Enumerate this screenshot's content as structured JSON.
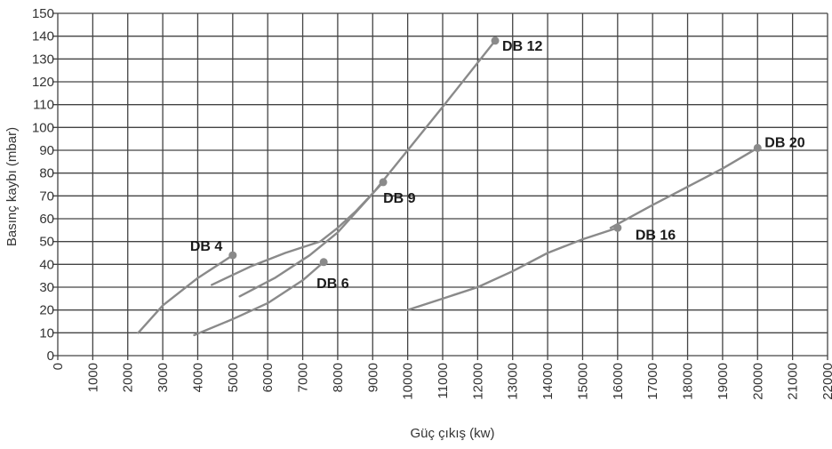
{
  "chart_data": {
    "type": "line",
    "xlabel": "Güç çıkış (kw)",
    "ylabel": "Basınç kaybı (mbar)",
    "xlim": [
      0,
      22000
    ],
    "ylim": [
      0,
      150
    ],
    "x_ticks": [
      "0",
      "1000",
      "2000",
      "3000",
      "4000",
      "5000",
      "6000",
      "7000",
      "8000",
      "9000",
      "10000",
      "11000",
      "12000",
      "13000",
      "14000",
      "15000",
      "16000",
      "17000",
      "18000",
      "19000",
      "20000",
      "21000",
      "22000"
    ],
    "y_ticks": [
      "0",
      "10",
      "20",
      "30",
      "40",
      "50",
      "60",
      "70",
      "80",
      "90",
      "100",
      "110",
      "120",
      "130",
      "140",
      "150"
    ],
    "grid": true,
    "series": [
      {
        "name": "DB 4",
        "x": [
          2300,
          3000,
          4000,
          5000
        ],
        "y": [
          10,
          22,
          34,
          44
        ]
      },
      {
        "name": "DB 6",
        "x": [
          3900,
          5000,
          6000,
          7000,
          7600
        ],
        "y": [
          9,
          16,
          23,
          33,
          41
        ]
      },
      {
        "name": "DB 9",
        "x": [
          4400,
          5500,
          6500,
          7500,
          8000,
          8500,
          9300
        ],
        "y": [
          31,
          39,
          45,
          50,
          56,
          63,
          76
        ]
      },
      {
        "name": "DB 12",
        "x": [
          5200,
          6200,
          7200,
          8000,
          9000,
          10000,
          11000,
          12500
        ],
        "y": [
          26,
          34,
          44,
          54,
          71,
          90,
          109,
          138
        ]
      },
      {
        "name": "DB 16",
        "x": [
          10000,
          11000,
          12000,
          13000,
          14000,
          15000,
          16000
        ],
        "y": [
          20,
          25,
          30,
          37,
          45,
          51,
          56
        ]
      },
      {
        "name": "DB 20",
        "x": [
          15800,
          17000,
          18000,
          19000,
          20000
        ],
        "y": [
          56,
          66,
          74,
          82,
          91
        ]
      }
    ]
  },
  "colors": {
    "series": "#8a8a8a",
    "grid": "#444444",
    "text": "#333333"
  }
}
